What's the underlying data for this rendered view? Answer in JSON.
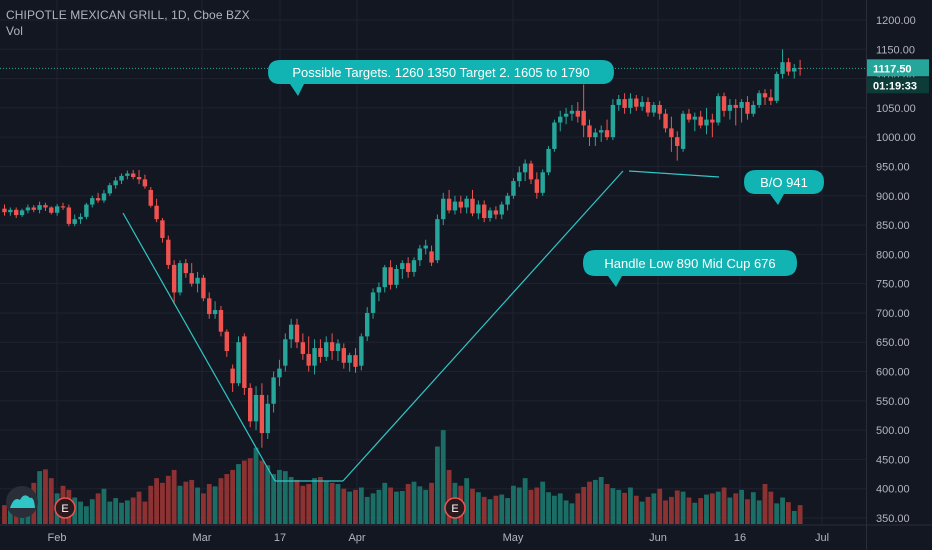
{
  "header": {
    "symbol": "CHIPOTLE MEXICAN GRILL, 1D, Cboe BZX",
    "volume_label": "Vol"
  },
  "colors": {
    "background": "#131722",
    "grid": "#1f2330",
    "up": "#26a69a",
    "down": "#ef5350",
    "vol_up": "#1b6e66",
    "vol_down": "#8d3232",
    "line": "#30c6c6",
    "bubble": "#12b3b3",
    "price_line": "#26a69a"
  },
  "price_axis": {
    "ticks": [
      "1200.00",
      "1150.00",
      "1100.00",
      "1050.00",
      "1000.00",
      "950.00",
      "900.00",
      "850.00",
      "800.00",
      "750.00",
      "700.00",
      "650.00",
      "600.00",
      "550.00",
      "500.00",
      "450.00",
      "400.00",
      "350.00"
    ],
    "price_tag": "1117.50",
    "time_tag": "01:19:33"
  },
  "time_axis": {
    "labels": [
      "Feb",
      "Mar",
      "17",
      "Apr",
      "May",
      "Jun",
      "16",
      "Jul"
    ]
  },
  "annotations": {
    "targets": "Possible Targets. 1260 1350 Target 2. 1605 to 1790",
    "breakout": "B/O 941",
    "handle": "Handle Low 890 Mid Cup 676"
  },
  "earnings_markers": [
    "E",
    "E"
  ],
  "chart_data": {
    "type": "candlestick",
    "title": "CHIPOTLE MEXICAN GRILL, 1D, Cboe BZX",
    "ylim": [
      340,
      1220
    ],
    "last_price": 1117.5,
    "series": [
      {
        "name": "ohlc",
        "values": [
          [
            878,
            885,
            866,
            872
          ],
          [
            872,
            880,
            866,
            876
          ],
          [
            876,
            880,
            862,
            867
          ],
          [
            867,
            878,
            864,
            875
          ],
          [
            875,
            885,
            870,
            880
          ],
          [
            880,
            884,
            872,
            876
          ],
          [
            876,
            890,
            870,
            884
          ],
          [
            884,
            888,
            874,
            880
          ],
          [
            880,
            882,
            868,
            871
          ],
          [
            871,
            886,
            866,
            882
          ],
          [
            882,
            888,
            876,
            880
          ],
          [
            880,
            885,
            848,
            852
          ],
          [
            852,
            868,
            848,
            860
          ],
          [
            860,
            870,
            852,
            864
          ],
          [
            864,
            888,
            860,
            885
          ],
          [
            885,
            900,
            880,
            896
          ],
          [
            896,
            905,
            888,
            892
          ],
          [
            892,
            910,
            888,
            904
          ],
          [
            904,
            922,
            900,
            918
          ],
          [
            918,
            932,
            912,
            926
          ],
          [
            926,
            938,
            920,
            934
          ],
          [
            934,
            943,
            928,
            938
          ],
          [
            938,
            944,
            928,
            932
          ],
          [
            932,
            944,
            920,
            928
          ],
          [
            928,
            936,
            912,
            916
          ],
          [
            910,
            915,
            880,
            883
          ],
          [
            883,
            895,
            855,
            860
          ],
          [
            858,
            862,
            820,
            828
          ],
          [
            825,
            832,
            775,
            782
          ],
          [
            782,
            790,
            715,
            735
          ],
          [
            735,
            790,
            730,
            785
          ],
          [
            785,
            792,
            760,
            768
          ],
          [
            768,
            785,
            745,
            750
          ],
          [
            750,
            770,
            735,
            760
          ],
          [
            760,
            765,
            720,
            725
          ],
          [
            725,
            735,
            690,
            698
          ],
          [
            698,
            720,
            690,
            705
          ],
          [
            705,
            712,
            660,
            668
          ],
          [
            668,
            672,
            625,
            635
          ],
          [
            605,
            612,
            565,
            580
          ],
          [
            580,
            660,
            575,
            650
          ],
          [
            660,
            665,
            560,
            572
          ],
          [
            572,
            580,
            505,
            515
          ],
          [
            515,
            575,
            500,
            560
          ],
          [
            560,
            580,
            470,
            495
          ],
          [
            495,
            560,
            485,
            545
          ],
          [
            545,
            600,
            530,
            590
          ],
          [
            590,
            620,
            575,
            605
          ],
          [
            610,
            665,
            600,
            655
          ],
          [
            655,
            690,
            640,
            680
          ],
          [
            680,
            690,
            640,
            650
          ],
          [
            650,
            665,
            620,
            630
          ],
          [
            630,
            660,
            600,
            610
          ],
          [
            610,
            655,
            595,
            640
          ],
          [
            640,
            655,
            615,
            625
          ],
          [
            625,
            660,
            618,
            650
          ],
          [
            650,
            665,
            620,
            635
          ],
          [
            635,
            655,
            618,
            648
          ],
          [
            640,
            648,
            605,
            615
          ],
          [
            615,
            632,
            600,
            628
          ],
          [
            628,
            640,
            598,
            608
          ],
          [
            610,
            665,
            602,
            660
          ],
          [
            660,
            710,
            652,
            700
          ],
          [
            700,
            742,
            690,
            735
          ],
          [
            735,
            752,
            720,
            744
          ],
          [
            744,
            782,
            735,
            778
          ],
          [
            778,
            790,
            740,
            748
          ],
          [
            748,
            782,
            742,
            775
          ],
          [
            775,
            790,
            758,
            785
          ],
          [
            785,
            795,
            760,
            770
          ],
          [
            770,
            795,
            762,
            790
          ],
          [
            790,
            816,
            780,
            810
          ],
          [
            810,
            825,
            800,
            815
          ],
          [
            805,
            815,
            780,
            786
          ],
          [
            790,
            868,
            785,
            860
          ],
          [
            860,
            905,
            850,
            895
          ],
          [
            895,
            910,
            870,
            875
          ],
          [
            875,
            900,
            868,
            890
          ],
          [
            890,
            900,
            870,
            880
          ],
          [
            880,
            900,
            870,
            895
          ],
          [
            895,
            910,
            865,
            870
          ],
          [
            870,
            892,
            860,
            885
          ],
          [
            885,
            892,
            855,
            862
          ],
          [
            862,
            880,
            856,
            875
          ],
          [
            875,
            882,
            860,
            868
          ],
          [
            868,
            890,
            860,
            885
          ],
          [
            885,
            905,
            875,
            900
          ],
          [
            900,
            930,
            895,
            925
          ],
          [
            925,
            950,
            915,
            940
          ],
          [
            940,
            962,
            925,
            955
          ],
          [
            955,
            960,
            920,
            928
          ],
          [
            928,
            940,
            895,
            905
          ],
          [
            905,
            945,
            900,
            940
          ],
          [
            940,
            985,
            935,
            980
          ],
          [
            980,
            1030,
            975,
            1025
          ],
          [
            1025,
            1045,
            1010,
            1035
          ],
          [
            1035,
            1050,
            1022,
            1040
          ],
          [
            1040,
            1055,
            1028,
            1045
          ],
          [
            1045,
            1060,
            1025,
            1035
          ],
          [
            1045,
            1090,
            1000,
            1020
          ],
          [
            1020,
            1030,
            985,
            1000
          ],
          [
            1000,
            1015,
            985,
            1008
          ],
          [
            1008,
            1020,
            992,
            1012
          ],
          [
            1012,
            1030,
            995,
            1000
          ],
          [
            1000,
            1065,
            995,
            1055
          ],
          [
            1055,
            1072,
            1045,
            1065
          ],
          [
            1065,
            1075,
            1040,
            1050
          ],
          [
            1050,
            1075,
            1040,
            1066
          ],
          [
            1066,
            1072,
            1045,
            1052
          ],
          [
            1052,
            1070,
            1045,
            1060
          ],
          [
            1060,
            1068,
            1035,
            1042
          ],
          [
            1042,
            1060,
            1035,
            1055
          ],
          [
            1055,
            1062,
            1030,
            1040
          ],
          [
            1040,
            1048,
            1008,
            1015
          ],
          [
            1015,
            1035,
            975,
            1000
          ],
          [
            1000,
            1010,
            960,
            985
          ],
          [
            980,
            1045,
            975,
            1040
          ],
          [
            1040,
            1048,
            1025,
            1030
          ],
          [
            1030,
            1042,
            1010,
            1035
          ],
          [
            1035,
            1045,
            1015,
            1020
          ],
          [
            1020,
            1050,
            1005,
            1030
          ],
          [
            1030,
            1040,
            1000,
            1025
          ],
          [
            1025,
            1075,
            1020,
            1070
          ],
          [
            1070,
            1076,
            1035,
            1045
          ],
          [
            1045,
            1065,
            1030,
            1055
          ],
          [
            1055,
            1065,
            1020,
            1050
          ],
          [
            1050,
            1065,
            1025,
            1060
          ],
          [
            1060,
            1070,
            1030,
            1040
          ],
          [
            1040,
            1062,
            1035,
            1055
          ],
          [
            1055,
            1080,
            1050,
            1075
          ],
          [
            1075,
            1082,
            1055,
            1068
          ],
          [
            1068,
            1082,
            1055,
            1062
          ],
          [
            1062,
            1112,
            1058,
            1108
          ],
          [
            1108,
            1150,
            1100,
            1128
          ],
          [
            1128,
            1135,
            1105,
            1112
          ],
          [
            1112,
            1125,
            1100,
            1118
          ],
          [
            1118,
            1132,
            1105,
            1117.5
          ]
        ]
      },
      {
        "name": "volume",
        "values": [
          372,
          378,
          392,
          380,
          384,
          410,
          430,
          433,
          418,
          392,
          405,
          398,
          385,
          378,
          370,
          382,
          392,
          400,
          378,
          384,
          376,
          380,
          385,
          395,
          378,
          405,
          418,
          410,
          422,
          432,
          405,
          412,
          415,
          402,
          392,
          408,
          404,
          418,
          425,
          432,
          442,
          448,
          452,
          470,
          448,
          440,
          425,
          432,
          430,
          420,
          415,
          405,
          408,
          418,
          420,
          412,
          410,
          408,
          400,
          395,
          398,
          402,
          386,
          392,
          398,
          410,
          402,
          395,
          396,
          408,
          412,
          404,
          398,
          410,
          472,
          500,
          432,
          410,
          405,
          418,
          400,
          394,
          386,
          382,
          388,
          390,
          384,
          405,
          402,
          418,
          398,
          402,
          412,
          394,
          388,
          392,
          380,
          375,
          392,
          403,
          412,
          415,
          420,
          408,
          401,
          398,
          393,
          402,
          388,
          378,
          386,
          392,
          400,
          380,
          386,
          397,
          395,
          385,
          376,
          384,
          390,
          392,
          395,
          402,
          385,
          392,
          398,
          382,
          394,
          380,
          408,
          395,
          375,
          385,
          377,
          362,
          372
        ]
      }
    ]
  }
}
